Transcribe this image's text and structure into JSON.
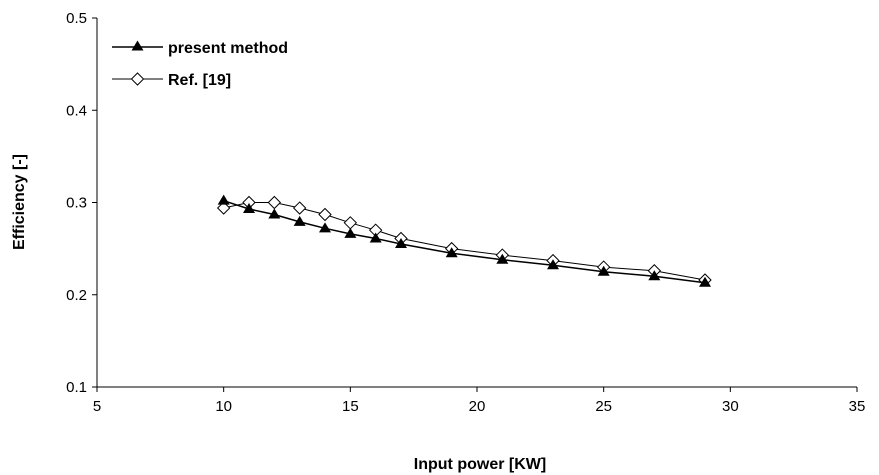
{
  "chart_data": {
    "type": "line",
    "xlabel": "Input power [KW]",
    "ylabel": "Efficiency [-]",
    "xlim": [
      5,
      35
    ],
    "ylim": [
      0.1,
      0.5
    ],
    "xticks": [
      "5",
      "10",
      "15",
      "20",
      "25",
      "30",
      "35"
    ],
    "yticks": [
      "0.1",
      "0.2",
      "0.3",
      "0.4",
      "0.5"
    ],
    "grid": false,
    "legend_position": "top-left",
    "series": [
      {
        "name": "present method",
        "marker": "filled-triangle",
        "color": "#000000",
        "x": [
          10,
          11,
          12,
          13,
          14,
          15,
          16,
          17,
          19,
          21,
          23,
          25,
          27,
          29
        ],
        "y": [
          0.302,
          0.293,
          0.287,
          0.279,
          0.272,
          0.266,
          0.261,
          0.255,
          0.245,
          0.238,
          0.232,
          0.225,
          0.22,
          0.213
        ]
      },
      {
        "name": "Ref. [19]",
        "marker": "open-diamond",
        "color": "#000000",
        "x": [
          10,
          11,
          12,
          13,
          14,
          15,
          16,
          17,
          19,
          21,
          23,
          25,
          27,
          29
        ],
        "y": [
          0.294,
          0.3,
          0.3,
          0.294,
          0.287,
          0.278,
          0.27,
          0.261,
          0.25,
          0.243,
          0.237,
          0.23,
          0.226,
          0.216
        ]
      }
    ]
  }
}
